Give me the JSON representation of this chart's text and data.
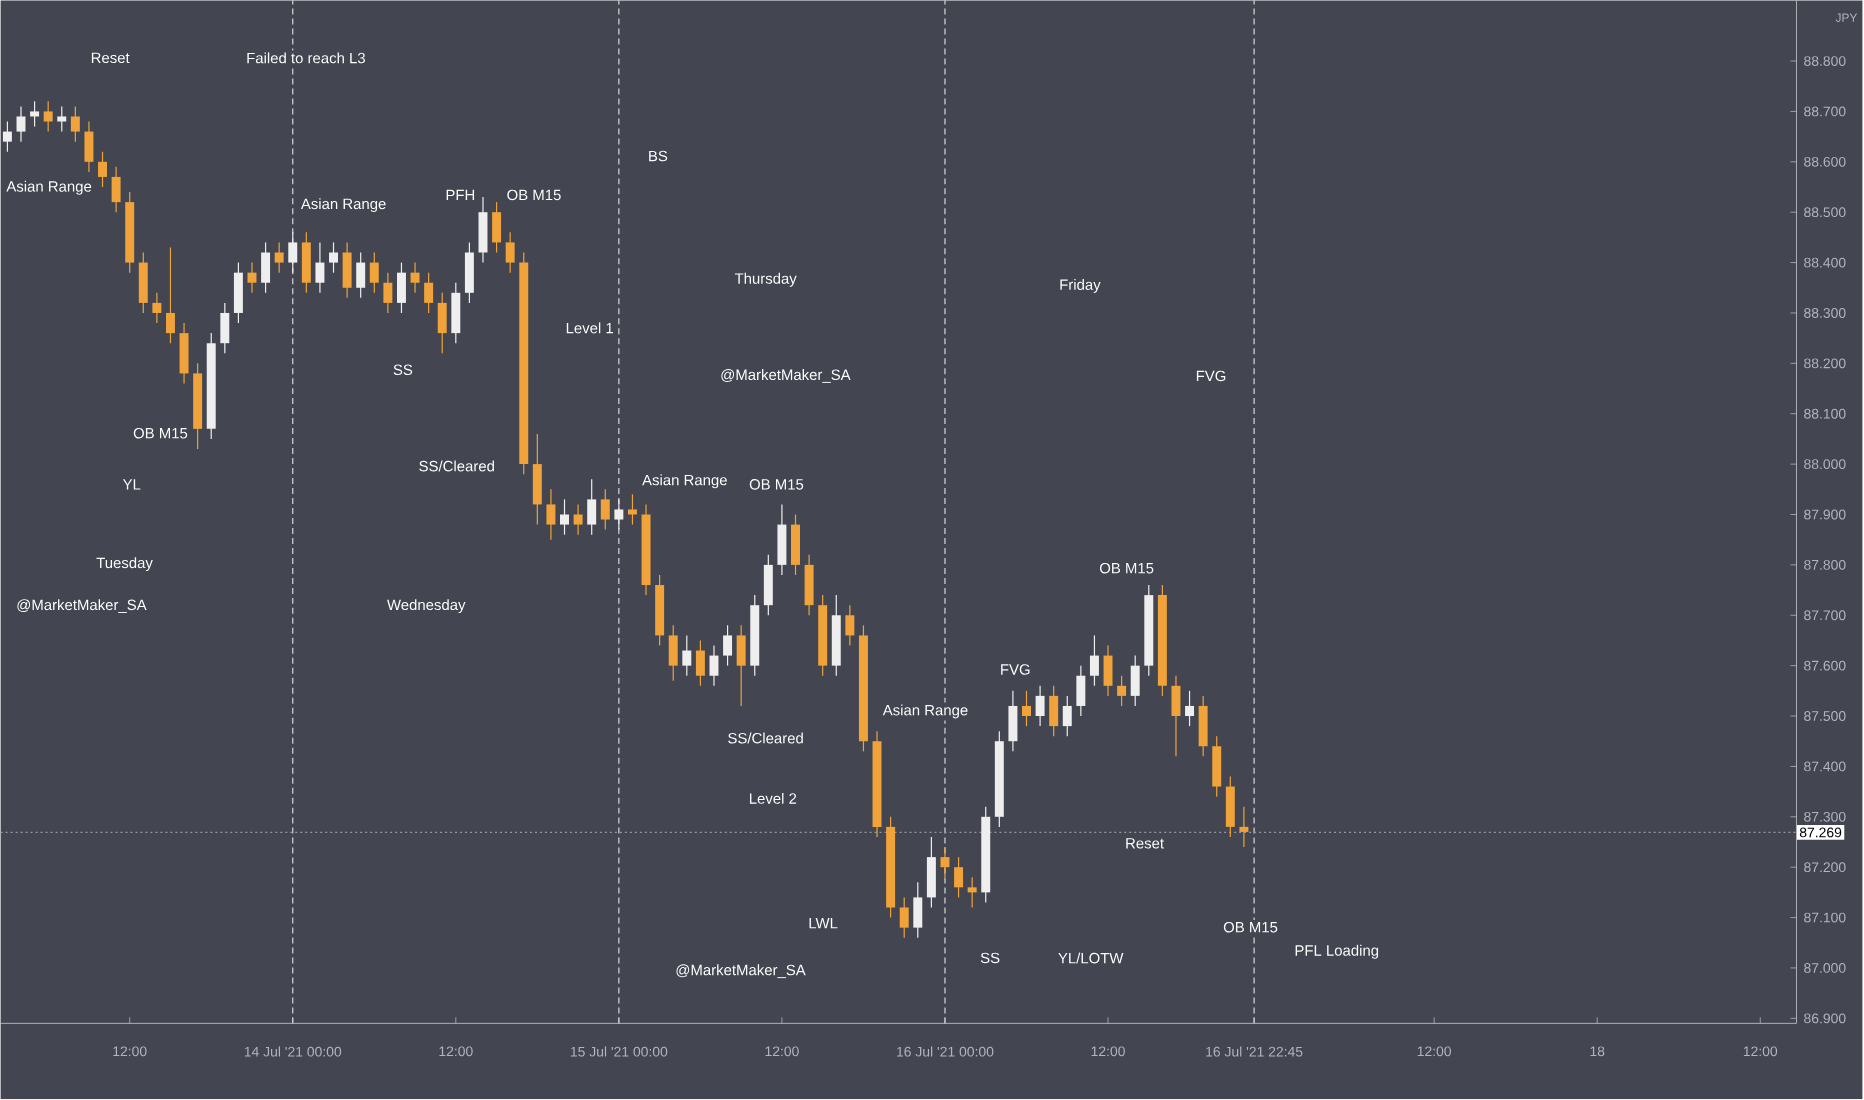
{
  "chart_data": {
    "type": "candlestick",
    "ylabel": "JPY",
    "x": [
      "2021-07-13T03:00",
      "2021-07-13T04:00",
      "2021-07-13T05:00",
      "2021-07-13T06:00",
      "2021-07-13T07:00",
      "2021-07-13T08:00",
      "2021-07-13T09:00",
      "2021-07-13T10:00",
      "2021-07-13T11:00",
      "2021-07-13T12:00",
      "2021-07-13T13:00",
      "2021-07-13T14:00",
      "2021-07-13T15:00",
      "2021-07-13T16:00",
      "2021-07-13T17:00",
      "2021-07-13T18:00",
      "2021-07-13T19:00",
      "2021-07-13T20:00",
      "2021-07-13T21:00",
      "2021-07-13T22:00",
      "2021-07-13T23:00",
      "2021-07-14T00:00",
      "2021-07-14T01:00",
      "2021-07-14T02:00",
      "2021-07-14T03:00",
      "2021-07-14T04:00",
      "2021-07-14T05:00",
      "2021-07-14T06:00",
      "2021-07-14T07:00",
      "2021-07-14T08:00",
      "2021-07-14T09:00",
      "2021-07-14T10:00",
      "2021-07-14T11:00",
      "2021-07-14T12:00",
      "2021-07-14T13:00",
      "2021-07-14T14:00",
      "2021-07-14T15:00",
      "2021-07-14T16:00",
      "2021-07-14T17:00",
      "2021-07-14T18:00",
      "2021-07-14T19:00",
      "2021-07-14T20:00",
      "2021-07-14T21:00",
      "2021-07-14T22:00",
      "2021-07-14T23:00",
      "2021-07-15T00:00",
      "2021-07-15T01:00",
      "2021-07-15T02:00",
      "2021-07-15T03:00",
      "2021-07-15T04:00",
      "2021-07-15T05:00",
      "2021-07-15T06:00",
      "2021-07-15T07:00",
      "2021-07-15T08:00",
      "2021-07-15T09:00",
      "2021-07-15T10:00",
      "2021-07-15T11:00",
      "2021-07-15T12:00",
      "2021-07-15T13:00",
      "2021-07-15T14:00",
      "2021-07-15T15:00",
      "2021-07-15T16:00",
      "2021-07-15T17:00",
      "2021-07-15T18:00",
      "2021-07-15T19:00",
      "2021-07-15T20:00",
      "2021-07-15T21:00",
      "2021-07-15T22:00",
      "2021-07-15T23:00",
      "2021-07-16T00:00",
      "2021-07-16T01:00",
      "2021-07-16T02:00",
      "2021-07-16T03:00",
      "2021-07-16T04:00",
      "2021-07-16T05:00",
      "2021-07-16T06:00",
      "2021-07-16T07:00",
      "2021-07-16T08:00",
      "2021-07-16T09:00",
      "2021-07-16T10:00",
      "2021-07-16T11:00",
      "2021-07-16T12:00",
      "2021-07-16T13:00",
      "2021-07-16T14:00",
      "2021-07-16T15:00",
      "2021-07-16T16:00",
      "2021-07-16T17:00",
      "2021-07-16T18:00",
      "2021-07-16T19:00",
      "2021-07-16T20:00",
      "2021-07-16T21:00",
      "2021-07-16T22:00"
    ],
    "ohlc": [
      [
        88.64,
        88.68,
        88.62,
        88.66
      ],
      [
        88.66,
        88.71,
        88.64,
        88.69
      ],
      [
        88.69,
        88.72,
        88.67,
        88.7
      ],
      [
        88.7,
        88.72,
        88.66,
        88.68
      ],
      [
        88.68,
        88.71,
        88.66,
        88.69
      ],
      [
        88.69,
        88.71,
        88.64,
        88.66
      ],
      [
        88.66,
        88.68,
        88.58,
        88.6
      ],
      [
        88.6,
        88.62,
        88.55,
        88.57
      ],
      [
        88.57,
        88.59,
        88.5,
        88.52
      ],
      [
        88.52,
        88.54,
        88.38,
        88.4
      ],
      [
        88.4,
        88.42,
        88.3,
        88.32
      ],
      [
        88.32,
        88.34,
        88.28,
        88.3
      ],
      [
        88.3,
        88.43,
        88.24,
        88.26
      ],
      [
        88.26,
        88.28,
        88.16,
        88.18
      ],
      [
        88.18,
        88.2,
        88.03,
        88.07
      ],
      [
        88.07,
        88.26,
        88.05,
        88.24
      ],
      [
        88.24,
        88.32,
        88.22,
        88.3
      ],
      [
        88.3,
        88.4,
        88.28,
        88.38
      ],
      [
        88.38,
        88.4,
        88.34,
        88.36
      ],
      [
        88.36,
        88.44,
        88.34,
        88.42
      ],
      [
        88.42,
        88.44,
        88.38,
        88.4
      ],
      [
        88.4,
        88.46,
        88.38,
        88.44
      ],
      [
        88.44,
        88.46,
        88.34,
        88.36
      ],
      [
        88.36,
        88.44,
        88.34,
        88.4
      ],
      [
        88.4,
        88.44,
        88.38,
        88.42
      ],
      [
        88.42,
        88.44,
        88.33,
        88.35
      ],
      [
        88.35,
        88.42,
        88.33,
        88.4
      ],
      [
        88.4,
        88.42,
        88.34,
        88.36
      ],
      [
        88.36,
        88.38,
        88.3,
        88.32
      ],
      [
        88.32,
        88.4,
        88.3,
        88.38
      ],
      [
        88.38,
        88.4,
        88.34,
        88.36
      ],
      [
        88.36,
        88.38,
        88.3,
        88.32
      ],
      [
        88.32,
        88.34,
        88.22,
        88.26
      ],
      [
        88.26,
        88.36,
        88.24,
        88.34
      ],
      [
        88.34,
        88.44,
        88.32,
        88.42
      ],
      [
        88.42,
        88.53,
        88.4,
        88.5
      ],
      [
        88.5,
        88.52,
        88.42,
        88.44
      ],
      [
        88.44,
        88.46,
        88.38,
        88.4
      ],
      [
        88.4,
        88.42,
        87.98,
        88.0
      ],
      [
        88.0,
        88.06,
        87.88,
        87.92
      ],
      [
        87.92,
        87.95,
        87.85,
        87.88
      ],
      [
        87.88,
        87.93,
        87.86,
        87.9
      ],
      [
        87.9,
        87.92,
        87.86,
        87.88
      ],
      [
        87.88,
        87.97,
        87.86,
        87.93
      ],
      [
        87.93,
        87.95,
        87.87,
        87.89
      ],
      [
        87.89,
        87.93,
        87.87,
        87.91
      ],
      [
        87.91,
        87.94,
        87.88,
        87.9
      ],
      [
        87.9,
        87.92,
        87.74,
        87.76
      ],
      [
        87.76,
        87.78,
        87.64,
        87.66
      ],
      [
        87.66,
        87.68,
        87.57,
        87.6
      ],
      [
        87.6,
        87.66,
        87.58,
        87.63
      ],
      [
        87.63,
        87.65,
        87.56,
        87.58
      ],
      [
        87.58,
        87.64,
        87.56,
        87.62
      ],
      [
        87.62,
        87.68,
        87.6,
        87.66
      ],
      [
        87.66,
        87.68,
        87.52,
        87.6
      ],
      [
        87.6,
        87.74,
        87.58,
        87.72
      ],
      [
        87.72,
        87.82,
        87.7,
        87.8
      ],
      [
        87.8,
        87.92,
        87.78,
        87.88
      ],
      [
        87.88,
        87.9,
        87.78,
        87.8
      ],
      [
        87.8,
        87.82,
        87.7,
        87.72
      ],
      [
        87.72,
        87.74,
        87.58,
        87.6
      ],
      [
        87.6,
        87.74,
        87.58,
        87.7
      ],
      [
        87.7,
        87.72,
        87.64,
        87.66
      ],
      [
        87.66,
        87.68,
        87.43,
        87.45
      ],
      [
        87.45,
        87.47,
        87.26,
        87.28
      ],
      [
        87.28,
        87.3,
        87.1,
        87.12
      ],
      [
        87.12,
        87.14,
        87.06,
        87.08
      ],
      [
        87.08,
        87.17,
        87.06,
        87.14
      ],
      [
        87.14,
        87.26,
        87.12,
        87.22
      ],
      [
        87.22,
        87.24,
        87.18,
        87.2
      ],
      [
        87.2,
        87.22,
        87.14,
        87.16
      ],
      [
        87.16,
        87.18,
        87.12,
        87.15
      ],
      [
        87.15,
        87.32,
        87.13,
        87.3
      ],
      [
        87.3,
        87.47,
        87.28,
        87.45
      ],
      [
        87.45,
        87.55,
        87.43,
        87.52
      ],
      [
        87.52,
        87.55,
        87.48,
        87.5
      ],
      [
        87.5,
        87.56,
        87.48,
        87.54
      ],
      [
        87.54,
        87.56,
        87.46,
        87.48
      ],
      [
        87.48,
        87.54,
        87.46,
        87.52
      ],
      [
        87.52,
        87.6,
        87.5,
        87.58
      ],
      [
        87.58,
        87.66,
        87.56,
        87.62
      ],
      [
        87.62,
        87.64,
        87.54,
        87.56
      ],
      [
        87.56,
        87.58,
        87.52,
        87.54
      ],
      [
        87.54,
        87.62,
        87.52,
        87.6
      ],
      [
        87.6,
        87.76,
        87.58,
        87.74
      ],
      [
        87.74,
        87.76,
        87.54,
        87.56
      ],
      [
        87.56,
        87.58,
        87.42,
        87.5
      ],
      [
        87.5,
        87.55,
        87.48,
        87.52
      ],
      [
        87.52,
        87.54,
        87.42,
        87.44
      ],
      [
        87.44,
        87.46,
        87.34,
        87.36
      ],
      [
        87.36,
        87.38,
        87.26,
        87.28
      ],
      [
        87.28,
        87.32,
        87.24,
        87.27
      ]
    ],
    "xlim": [
      "2021-07-13T02:30",
      "2021-07-18T14:40"
    ],
    "ylim": [
      86.89,
      88.92
    ],
    "xticks": [
      {
        "value": "2021-07-13T12:00",
        "label": "12:00"
      },
      {
        "value": "2021-07-14T00:00",
        "label": "14 Jul '21  00:00"
      },
      {
        "value": "2021-07-14T12:00",
        "label": "12:00"
      },
      {
        "value": "2021-07-15T00:00",
        "label": "15 Jul '21  00:00"
      },
      {
        "value": "2021-07-15T12:00",
        "label": "12:00"
      },
      {
        "value": "2021-07-16T00:00",
        "label": "16 Jul '21  00:00"
      },
      {
        "value": "2021-07-16T12:00",
        "label": "12:00"
      },
      {
        "value": "2021-07-16T22:45",
        "label": "16 Jul '21  22:45"
      },
      {
        "value": "2021-07-17T12:00",
        "label": "12:00"
      },
      {
        "value": "2021-07-18T00:00",
        "label": "18"
      },
      {
        "value": "2021-07-18T12:00",
        "label": "12:00"
      }
    ],
    "yticks": [
      {
        "value": 86.9,
        "label": "86.900"
      },
      {
        "value": 87.0,
        "label": "87.000"
      },
      {
        "value": 87.1,
        "label": "87.100"
      },
      {
        "value": 87.2,
        "label": "87.200"
      },
      {
        "value": 87.3,
        "label": "87.300"
      },
      {
        "value": 87.4,
        "label": "87.400"
      },
      {
        "value": 87.5,
        "label": "87.500"
      },
      {
        "value": 87.6,
        "label": "87.600"
      },
      {
        "value": 87.7,
        "label": "87.700"
      },
      {
        "value": 87.8,
        "label": "87.800"
      },
      {
        "value": 87.9,
        "label": "87.900"
      },
      {
        "value": 88.0,
        "label": "88.000"
      },
      {
        "value": 88.1,
        "label": "88.100"
      },
      {
        "value": 88.2,
        "label": "88.200"
      },
      {
        "value": 88.3,
        "label": "88.300"
      },
      {
        "value": 88.4,
        "label": "88.400"
      },
      {
        "value": 88.5,
        "label": "88.500"
      },
      {
        "value": 88.6,
        "label": "88.600"
      },
      {
        "value": 88.7,
        "label": "88.700"
      },
      {
        "value": 88.8,
        "label": "88.800"
      }
    ],
    "ref_lines": [
      {
        "axis": "x",
        "value": "2021-07-14T00:00",
        "line_style": "dashed",
        "color": "#d8d8d8"
      },
      {
        "axis": "x",
        "value": "2021-07-15T00:00",
        "line_style": "dashed",
        "color": "#d8d8d8"
      },
      {
        "axis": "x",
        "value": "2021-07-16T00:00",
        "line_style": "dashed",
        "color": "#d8d8d8"
      },
      {
        "axis": "x",
        "value": "2021-07-16T22:45",
        "line_style": "dashed",
        "color": "#d8d8d8"
      },
      {
        "axis": "y",
        "value": 87.269,
        "label": "87.269",
        "line_style": "dotted",
        "color": "#9598a1"
      }
    ],
    "annotations": [
      "Reset",
      "Failed to reach L3",
      "Asian Range",
      "Asian Range",
      "PFH",
      "OB M15",
      "BS",
      "Thursday",
      "Friday",
      "@MarketMaker_SA",
      "FVG",
      "SS",
      "Level 1",
      "OB M15",
      "YL",
      "SS/Cleared",
      "Asian Range",
      "OB M15",
      "Tuesday",
      "@MarketMaker_SA",
      "Wednesday",
      "OB M15",
      "FVG",
      "Asian Range",
      "SS/Cleared",
      "Level 2",
      "Reset",
      "LWL",
      "OB M15",
      "PFL Loading",
      "SS",
      "YL/LOTW",
      "@MarketMaker_SA"
    ]
  }
}
